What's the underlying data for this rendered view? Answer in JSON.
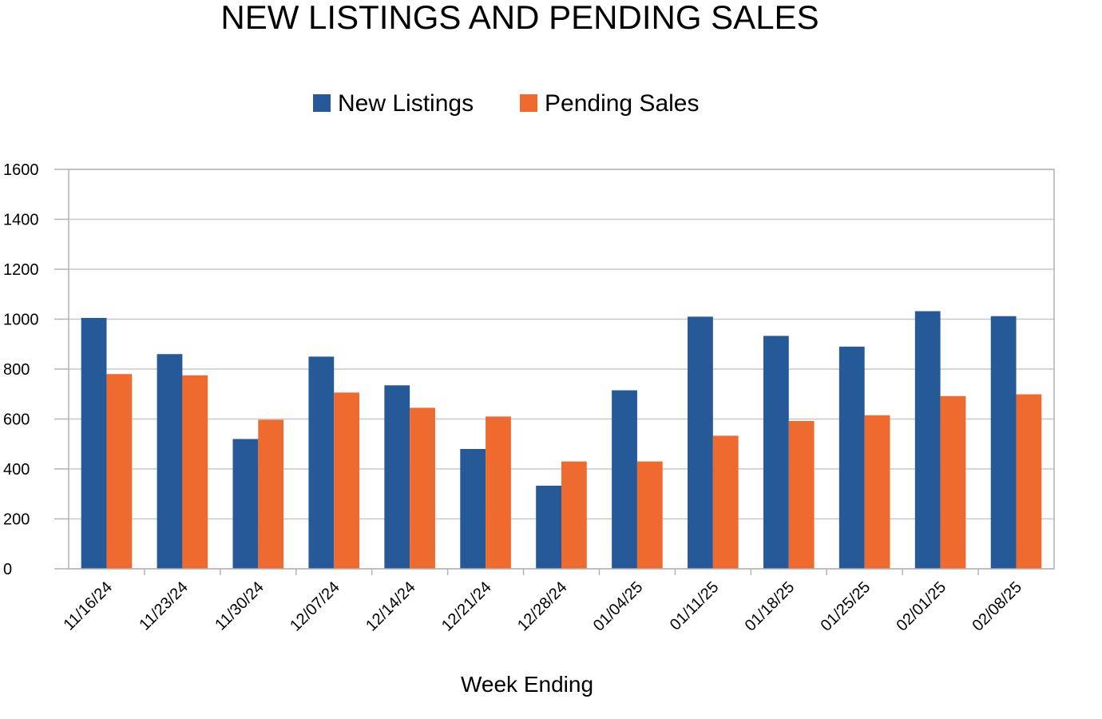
{
  "chart_data": {
    "type": "bar",
    "title": "NEW LISTINGS AND PENDING SALES",
    "xlabel": "Week Ending",
    "ylabel": "",
    "ylim": [
      0,
      1600
    ],
    "yticks": [
      0,
      200,
      400,
      600,
      800,
      1000,
      1200,
      1400,
      1600
    ],
    "grid": true,
    "legend_position": "top-center",
    "categories": [
      "11/16/24",
      "11/23/24",
      "11/30/24",
      "12/07/24",
      "12/14/24",
      "12/21/24",
      "12/28/24",
      "01/04/25",
      "01/11/25",
      "01/18/25",
      "01/25/25",
      "02/01/25",
      "02/08/25"
    ],
    "series": [
      {
        "name": "New Listings",
        "color": "#255997",
        "values": [
          1005,
          860,
          520,
          850,
          735,
          480,
          333,
          715,
          1010,
          933,
          890,
          1032,
          1012
        ]
      },
      {
        "name": "Pending Sales",
        "color": "#ee6a2e",
        "values": [
          780,
          775,
          597,
          706,
          645,
          610,
          430,
          430,
          533,
          592,
          615,
          692,
          699
        ]
      }
    ]
  }
}
